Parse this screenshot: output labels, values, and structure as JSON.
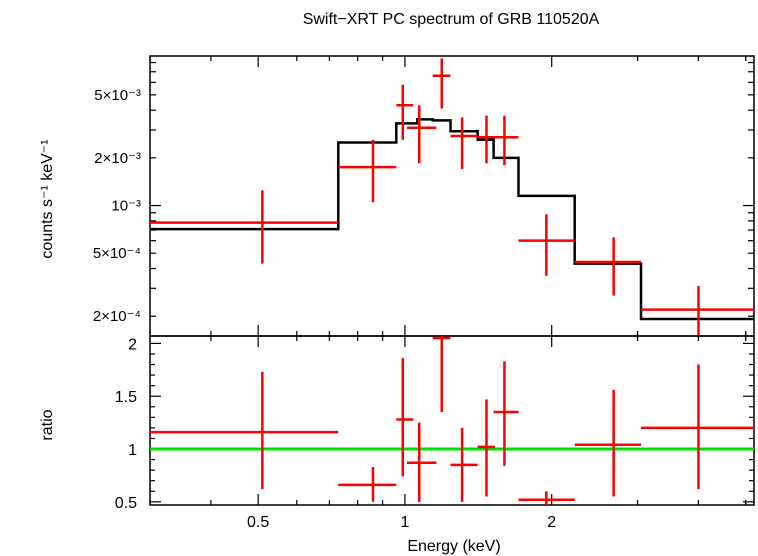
{
  "chart_data": [
    {
      "type": "scatter",
      "title": "Swift−XRT PC spectrum of GRB 110520A",
      "ylabel": "counts s⁻¹ keV⁻¹",
      "xscale": "log",
      "yscale": "log",
      "xlim": [
        0.3,
        5.2
      ],
      "ylim": [
        0.00015,
        0.0088
      ],
      "yticks": [
        {
          "value": 0.005,
          "label": "5×10⁻³"
        },
        {
          "value": 0.002,
          "label": "2×10⁻³"
        },
        {
          "value": 0.001,
          "label": "10⁻³"
        },
        {
          "value": 0.0005,
          "label": "5×10⁻⁴"
        },
        {
          "value": 0.0002,
          "label": "2×10⁻⁴"
        }
      ],
      "series": [
        {
          "kind": "data",
          "color": "#ff0000",
          "points": [
            {
              "x": 0.51,
              "xlo": 0.3,
              "xhi": 0.73,
              "y": 0.00078,
              "ylo": 0.00043,
              "yhi": 0.00125
            },
            {
              "x": 0.86,
              "xlo": 0.73,
              "xhi": 0.96,
              "y": 0.00175,
              "ylo": 0.00105,
              "yhi": 0.0026
            },
            {
              "x": 0.99,
              "xlo": 0.96,
              "xhi": 1.04,
              "y": 0.0043,
              "ylo": 0.0026,
              "yhi": 0.0058
            },
            {
              "x": 1.07,
              "xlo": 1.01,
              "xhi": 1.16,
              "y": 0.0031,
              "ylo": 0.00185,
              "yhi": 0.0043
            },
            {
              "x": 1.19,
              "xlo": 1.14,
              "xhi": 1.24,
              "y": 0.0066,
              "ylo": 0.0041,
              "yhi": 0.0085
            },
            {
              "x": 1.31,
              "xlo": 1.24,
              "xhi": 1.41,
              "y": 0.00275,
              "ylo": 0.0017,
              "yhi": 0.0036
            },
            {
              "x": 1.47,
              "xlo": 1.41,
              "xhi": 1.53,
              "y": 0.0027,
              "ylo": 0.00185,
              "yhi": 0.0037
            },
            {
              "x": 1.6,
              "xlo": 1.52,
              "xhi": 1.71,
              "y": 0.0027,
              "ylo": 0.0018,
              "yhi": 0.0037
            },
            {
              "x": 1.95,
              "xlo": 1.71,
              "xhi": 2.23,
              "y": 0.0006,
              "ylo": 0.00036,
              "yhi": 0.00088
            },
            {
              "x": 2.68,
              "xlo": 2.23,
              "xhi": 3.05,
              "y": 0.00044,
              "ylo": 0.00027,
              "yhi": 0.00063
            },
            {
              "x": 4.0,
              "xlo": 3.05,
              "xhi": 5.2,
              "y": 0.00022,
              "ylo": 0.000148,
              "yhi": 0.00031
            }
          ]
        },
        {
          "kind": "model",
          "color": "#000000",
          "steps": [
            {
              "x0": 0.3,
              "x1": 0.73,
              "y": 0.00071
            },
            {
              "x0": 0.73,
              "x1": 0.96,
              "y": 0.0025
            },
            {
              "x0": 0.96,
              "x1": 1.06,
              "y": 0.0033
            },
            {
              "x0": 1.06,
              "x1": 1.14,
              "y": 0.0035
            },
            {
              "x0": 1.14,
              "x1": 1.24,
              "y": 0.00345
            },
            {
              "x0": 1.24,
              "x1": 1.41,
              "y": 0.00295
            },
            {
              "x0": 1.41,
              "x1": 1.52,
              "y": 0.0026
            },
            {
              "x0": 1.52,
              "x1": 1.71,
              "y": 0.002
            },
            {
              "x0": 1.71,
              "x1": 2.23,
              "y": 0.00115
            },
            {
              "x0": 2.23,
              "x1": 3.05,
              "y": 0.00043
            },
            {
              "x0": 3.05,
              "x1": 5.2,
              "y": 0.000192
            }
          ]
        }
      ]
    },
    {
      "type": "scatter",
      "ylabel": "ratio",
      "xlabel": "Energy (keV)",
      "xscale": "log",
      "yscale": "linear",
      "xlim": [
        0.3,
        5.2
      ],
      "ylim": [
        0.47,
        2.07
      ],
      "xticks": [
        {
          "value": 0.5,
          "label": "0.5"
        },
        {
          "value": 1,
          "label": "1"
        },
        {
          "value": 2,
          "label": "2"
        }
      ],
      "yticks": [
        {
          "value": 2,
          "label": "2"
        },
        {
          "value": 1.5,
          "label": "1.5"
        },
        {
          "value": 1,
          "label": "1"
        },
        {
          "value": 0.5,
          "label": "0.5"
        }
      ],
      "reference_line": {
        "y": 1,
        "color": "#00e000"
      },
      "series": [
        {
          "kind": "data",
          "color": "#ff0000",
          "points": [
            {
              "x": 0.51,
              "xlo": 0.3,
              "xhi": 0.73,
              "y": 1.16,
              "ylo": 0.62,
              "yhi": 1.73
            },
            {
              "x": 0.86,
              "xlo": 0.73,
              "xhi": 0.96,
              "y": 0.66,
              "ylo": 0.5,
              "yhi": 0.83
            },
            {
              "x": 0.99,
              "xlo": 0.96,
              "xhi": 1.04,
              "y": 1.28,
              "ylo": 0.74,
              "yhi": 1.86
            },
            {
              "x": 1.07,
              "xlo": 1.01,
              "xhi": 1.16,
              "y": 0.87,
              "ylo": 0.5,
              "yhi": 1.25
            },
            {
              "x": 1.19,
              "xlo": 1.14,
              "xhi": 1.24,
              "y": 2.05,
              "ylo": 1.35,
              "yhi": 2.07
            },
            {
              "x": 1.31,
              "xlo": 1.24,
              "xhi": 1.41,
              "y": 0.85,
              "ylo": 0.5,
              "yhi": 1.2
            },
            {
              "x": 1.47,
              "xlo": 1.41,
              "xhi": 1.53,
              "y": 1.02,
              "ylo": 0.55,
              "yhi": 1.47
            },
            {
              "x": 1.6,
              "xlo": 1.52,
              "xhi": 1.71,
              "y": 1.35,
              "ylo": 0.84,
              "yhi": 1.83
            },
            {
              "x": 1.95,
              "xlo": 1.71,
              "xhi": 2.23,
              "y": 0.52,
              "ylo": 0.47,
              "yhi": 0.6
            },
            {
              "x": 2.68,
              "xlo": 2.23,
              "xhi": 3.05,
              "y": 1.04,
              "ylo": 0.55,
              "yhi": 1.56
            },
            {
              "x": 4.0,
              "xlo": 3.05,
              "xhi": 5.2,
              "y": 1.2,
              "ylo": 0.62,
              "yhi": 1.8
            }
          ]
        }
      ]
    }
  ]
}
